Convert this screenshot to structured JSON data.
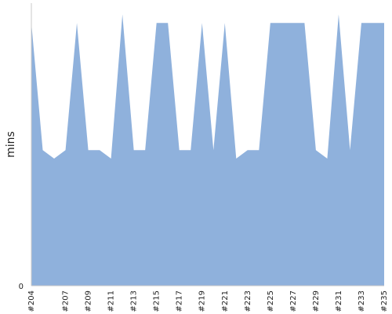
{
  "chart_data": {
    "type": "area",
    "title": "",
    "xlabel": "",
    "ylabel": "mins",
    "y_tick_labels": [
      "0"
    ],
    "ylim": [
      0,
      10
    ],
    "grid": false,
    "legend": "none",
    "fill_color": "#8fb1dc",
    "axis_color": "#c8c8c8",
    "x_tick_labels": [
      "#204",
      "#207",
      "#209",
      "#211",
      "#213",
      "#215",
      "#217",
      "#219",
      "#221",
      "#223",
      "#225",
      "#227",
      "#229",
      "#231",
      "#233",
      "#235"
    ],
    "x": [
      "#204",
      "#205",
      "#206",
      "#207",
      "#208",
      "#209",
      "#210",
      "#211",
      "#212",
      "#213",
      "#214",
      "#215",
      "#216",
      "#217",
      "#218",
      "#219",
      "#220",
      "#221",
      "#222",
      "#223",
      "#224",
      "#225",
      "#226",
      "#227",
      "#228",
      "#229",
      "#230",
      "#231",
      "#232",
      "#233",
      "#234",
      "#235"
    ],
    "values": [
      9.3,
      4.8,
      4.5,
      4.8,
      9.3,
      4.8,
      4.8,
      4.5,
      9.6,
      4.8,
      4.8,
      9.3,
      9.3,
      4.8,
      4.8,
      9.3,
      4.8,
      9.3,
      4.5,
      4.8,
      4.8,
      9.3,
      9.3,
      9.3,
      9.3,
      4.8,
      4.5,
      9.6,
      4.8,
      9.3,
      9.3,
      9.3
    ]
  }
}
